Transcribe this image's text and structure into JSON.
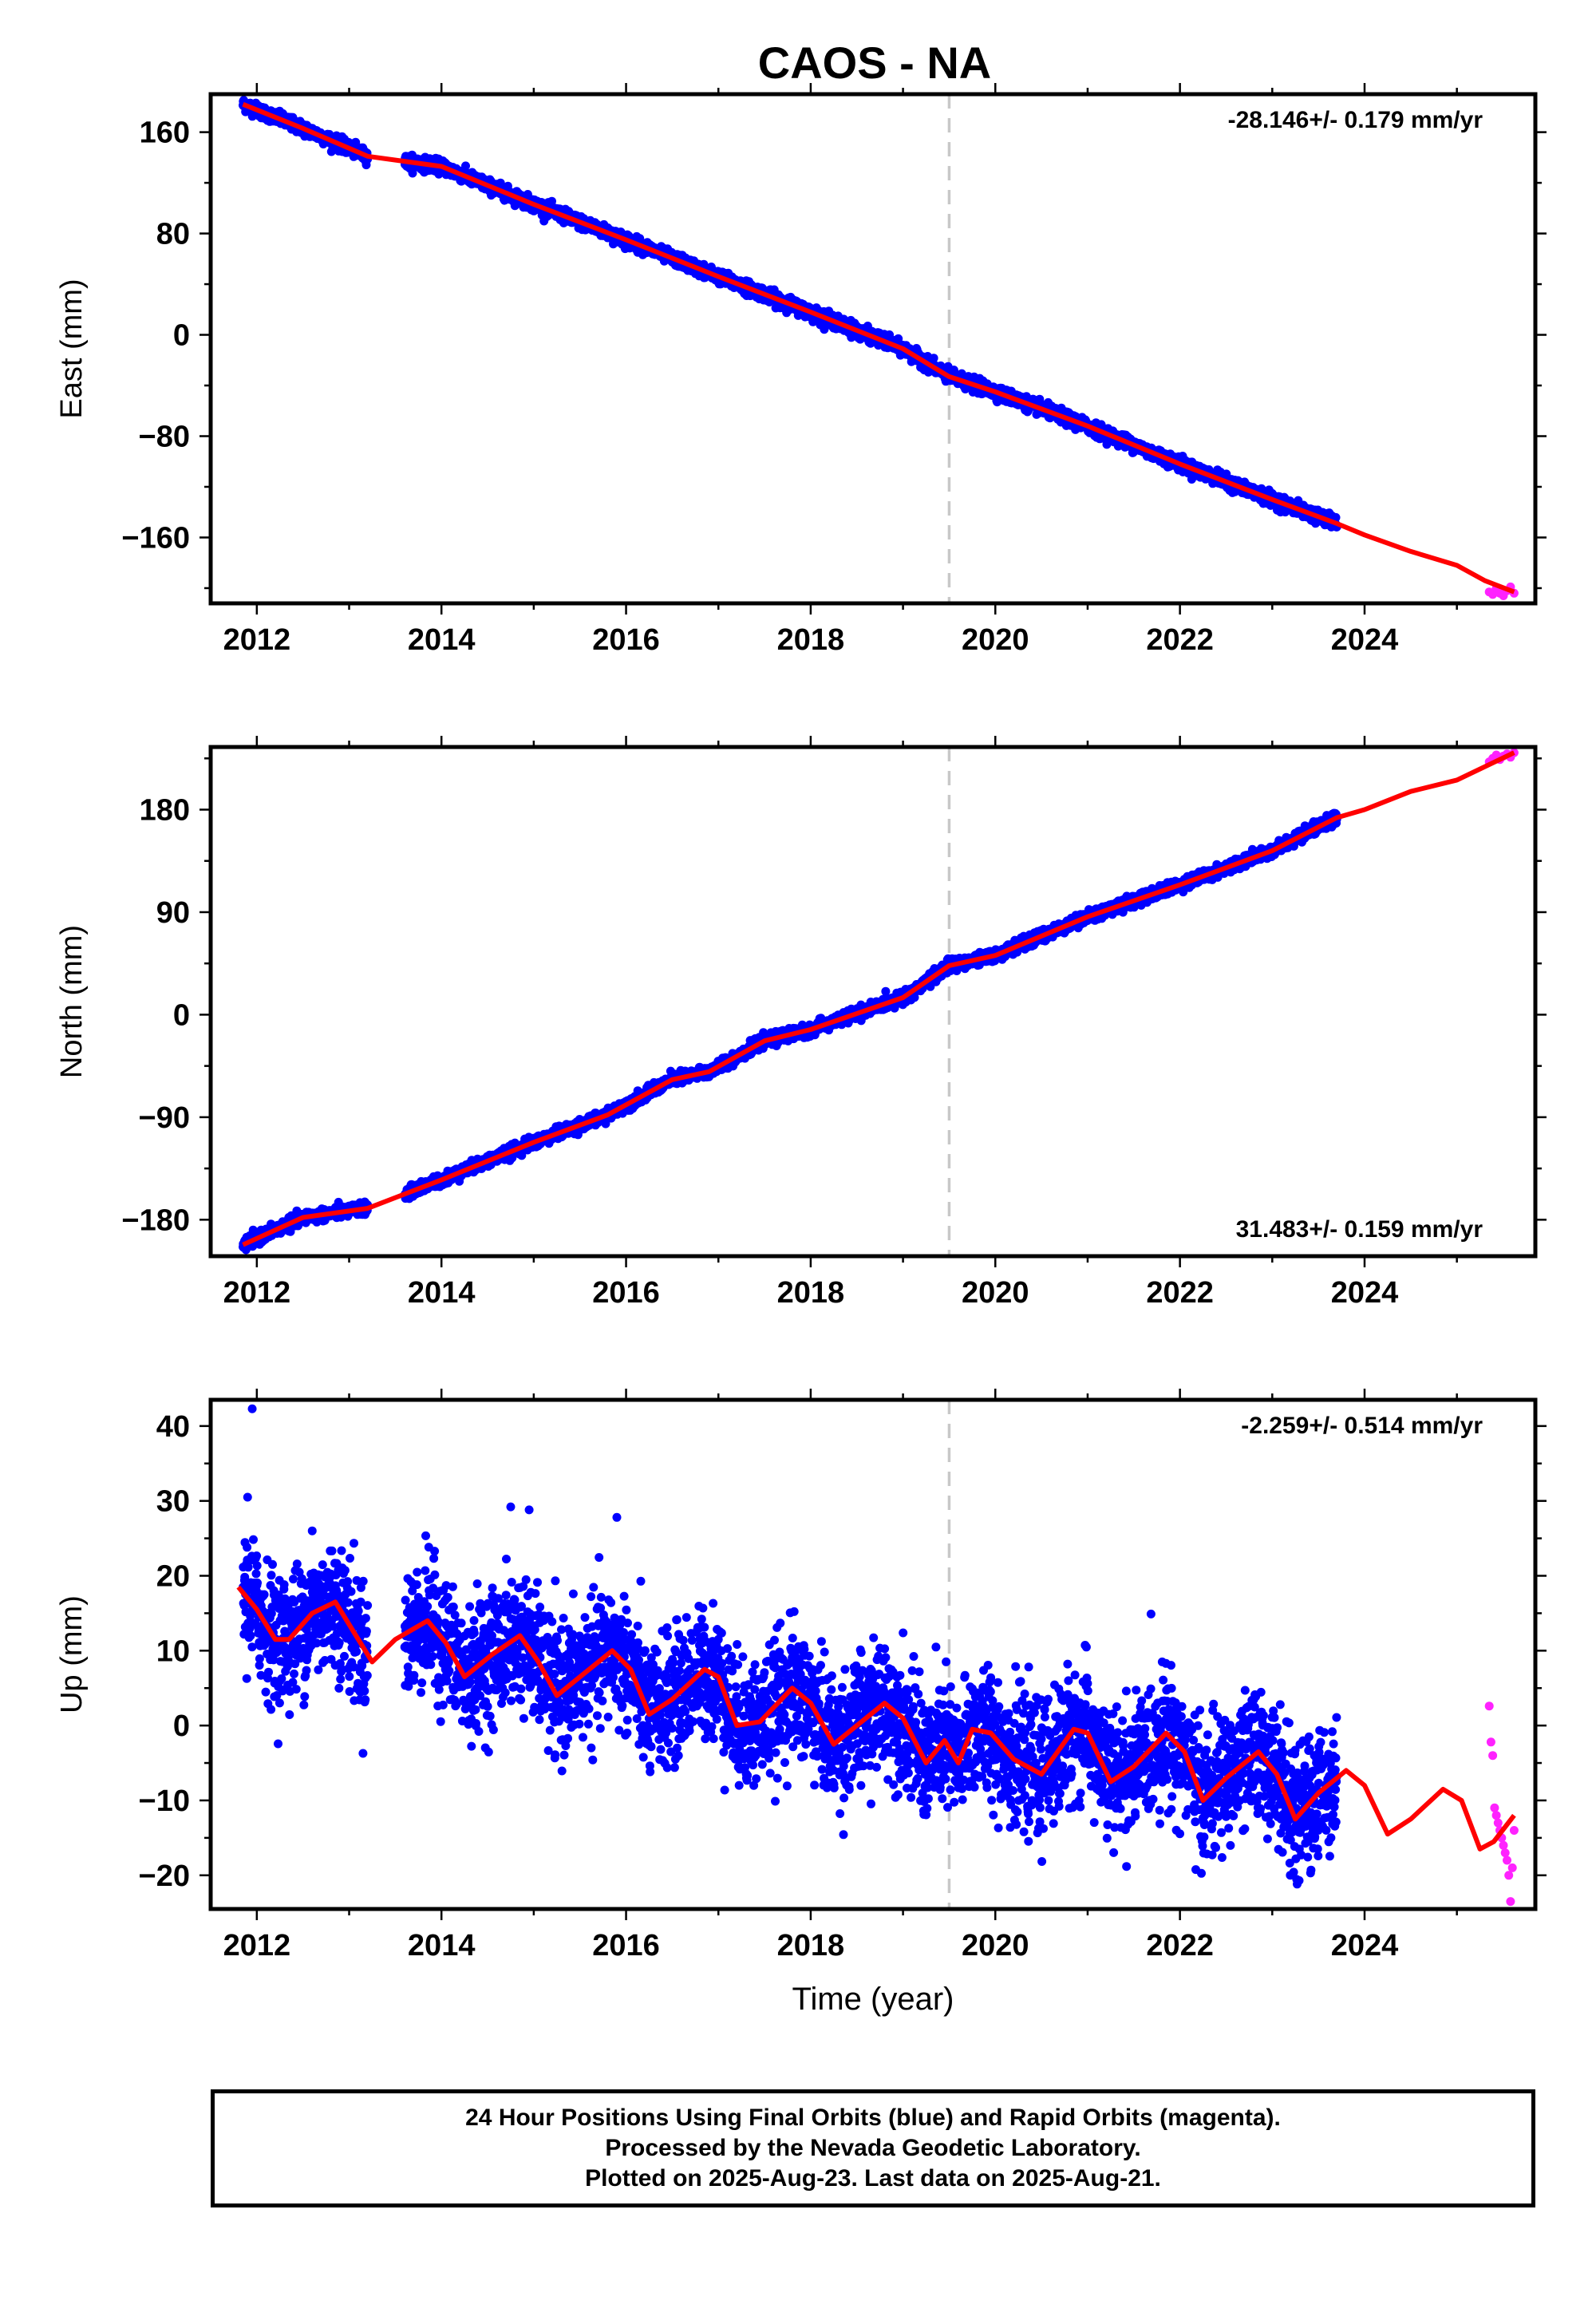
{
  "title": "CAOS - NA",
  "colors": {
    "final_orbits": "#0000ff",
    "rapid_orbits": "#ff22ff",
    "model": "#ff0000",
    "reference_line": "#c8c8c8"
  },
  "footer": {
    "line1": "24 Hour Positions Using Final Orbits (blue) and Rapid Orbits (magenta).",
    "line2": "Processed by the Nevada Geodetic Laboratory.",
    "line3": "Plotted on 2025-Aug-23. Last data on 2025-Aug-21."
  },
  "chart_data": [
    {
      "type": "scatter",
      "id": "east",
      "ylabel": "East (mm)",
      "xlabel": "",
      "rate_label": "-28.146+/- 0.179 mm/yr",
      "rate_position": "top-right",
      "xlim": [
        2011.5,
        2025.85
      ],
      "ylim": [
        -212,
        190
      ],
      "x_ticks": [
        2012,
        2014,
        2016,
        2018,
        2020,
        2022,
        2024
      ],
      "y_ticks": [
        160,
        80,
        0,
        -80,
        -160
      ],
      "y_tick_labels": [
        "160",
        "80",
        "0",
        "−80",
        "−160"
      ],
      "reference_line_x": 2019.5,
      "rate": -28.146,
      "final_orbits": {
        "start": 2011.85,
        "end": 2023.7,
        "value_at_start": 182,
        "noise": 2.5,
        "seasonal": 2,
        "gap": [
          2013.2,
          2013.6
        ]
      },
      "rapid_orbits": {
        "start": 2025.35,
        "end": 2025.62,
        "values": [
          -203,
          -205,
          -200,
          -204,
          -206,
          -202,
          -199,
          -204
        ]
      },
      "model": {
        "x": [
          2011.85,
          2012.5,
          2013.2,
          2014.0,
          2015.0,
          2016.0,
          2017.0,
          2018.0,
          2019.0,
          2019.5,
          2020.0,
          2021.0,
          2022.0,
          2023.0,
          2023.7,
          2024.0,
          2024.5,
          2025.0,
          2025.3,
          2025.62
        ],
        "y": [
          182,
          163,
          141,
          133,
          103,
          75,
          46,
          18,
          -11,
          -33,
          -45,
          -72,
          -102,
          -130,
          -149,
          -158,
          -171,
          -182,
          -194,
          -203
        ]
      }
    },
    {
      "type": "scatter",
      "id": "north",
      "ylabel": "North (mm)",
      "xlabel": "",
      "rate_label": "31.483+/- 0.159 mm/yr",
      "rate_position": "bottom-right",
      "xlim": [
        2011.5,
        2025.85
      ],
      "ylim": [
        -212,
        235
      ],
      "x_ticks": [
        2012,
        2014,
        2016,
        2018,
        2020,
        2022,
        2024
      ],
      "y_ticks": [
        180,
        90,
        0,
        -90,
        -180
      ],
      "y_tick_labels": [
        "180",
        "90",
        "0",
        "−90",
        "−180"
      ],
      "reference_line_x": 2019.5,
      "rate": 31.483,
      "final_orbits": {
        "start": 2011.85,
        "end": 2023.7,
        "value_at_start": -202,
        "noise": 2.5,
        "seasonal": 2,
        "gap": [
          2013.2,
          2013.6
        ]
      },
      "rapid_orbits": {
        "start": 2025.35,
        "end": 2025.62,
        "values": [
          222,
          225,
          228,
          224,
          227,
          229,
          226,
          230
        ]
      },
      "model": {
        "x": [
          2011.85,
          2012.5,
          2013.2,
          2014.0,
          2015.0,
          2015.8,
          2016.5,
          2016.9,
          2017.5,
          2018.0,
          2019.0,
          2019.5,
          2020.0,
          2021.0,
          2022.0,
          2023.0,
          2023.7,
          2024.0,
          2024.5,
          2025.0,
          2025.62
        ],
        "y": [
          -202,
          -178,
          -170,
          -145,
          -112,
          -88,
          -57,
          -50,
          -23,
          -13,
          15,
          43,
          52,
          86,
          114,
          144,
          173,
          180,
          196,
          206,
          230
        ]
      }
    },
    {
      "type": "scatter",
      "id": "up",
      "ylabel": "Up (mm)",
      "xlabel": "Time (year)",
      "rate_label": "-2.259+/- 0.514 mm/yr",
      "rate_position": "top-right",
      "xlim": [
        2011.5,
        2025.85
      ],
      "ylim": [
        -24.5,
        43.5
      ],
      "x_ticks": [
        2012,
        2014,
        2016,
        2018,
        2020,
        2022,
        2024
      ],
      "y_ticks": [
        40,
        30,
        20,
        10,
        0,
        -10,
        -20
      ],
      "y_tick_labels": [
        "40",
        "30",
        "20",
        "10",
        "0",
        "−10",
        "−20"
      ],
      "reference_line_x": 2019.5,
      "rate": -2.259,
      "final_orbits": {
        "start": 2011.85,
        "end": 2023.7,
        "noise": 4.2,
        "gap": [
          2013.2,
          2013.6
        ],
        "outliers": [
          [
            2011.95,
            42.3
          ],
          [
            2011.9,
            30.5
          ],
          [
            2014.75,
            29.2
          ],
          [
            2014.95,
            28.8
          ],
          [
            2015.9,
            27.8
          ],
          [
            2012.6,
            26
          ]
        ]
      },
      "rapid_orbits": {
        "start": 2025.35,
        "end": 2025.62,
        "values": [
          2.6,
          -2.2,
          -4.0,
          -11,
          -12,
          -13,
          -14,
          -15,
          -16,
          -17,
          -18,
          -20,
          -23.5,
          -19,
          -14
        ]
      },
      "model": {
        "x": [
          2011.8,
          2012.0,
          2012.2,
          2012.35,
          2012.6,
          2012.85,
          2013.05,
          2013.25,
          2013.5,
          2013.85,
          2014.05,
          2014.25,
          2014.55,
          2014.85,
          2015.05,
          2015.25,
          2015.55,
          2015.85,
          2016.05,
          2016.25,
          2016.5,
          2016.85,
          2017.0,
          2017.2,
          2017.45,
          2017.8,
          2018.0,
          2018.25,
          2018.5,
          2018.8,
          2019.0,
          2019.25,
          2019.45,
          2019.6,
          2019.75,
          2019.95,
          2020.2,
          2020.5,
          2020.85,
          2021.0,
          2021.25,
          2021.5,
          2021.85,
          2022.05,
          2022.25,
          2022.5,
          2022.85,
          2023.05,
          2023.25,
          2023.5,
          2023.8,
          2024.0,
          2024.25,
          2024.5,
          2024.85,
          2025.05,
          2025.25,
          2025.4,
          2025.62
        ],
        "y": [
          18.5,
          15.5,
          11.5,
          11.5,
          15,
          16.5,
          12.5,
          8.5,
          11.5,
          14,
          11,
          6.5,
          9.5,
          12,
          8.5,
          4,
          7,
          10,
          7.5,
          1.5,
          3.5,
          7.5,
          6.5,
          0,
          0.5,
          5,
          3,
          -2.5,
          0,
          3,
          1,
          -5,
          -2,
          -5,
          -0.5,
          -1,
          -4.5,
          -6.5,
          -0.5,
          -1,
          -7.5,
          -5.5,
          -1,
          -3.5,
          -10,
          -7,
          -3.5,
          -6.5,
          -12.5,
          -9,
          -6,
          -8,
          -14.5,
          -12.5,
          -8.5,
          -10,
          -16.5,
          -15.5,
          -12
        ]
      }
    }
  ]
}
